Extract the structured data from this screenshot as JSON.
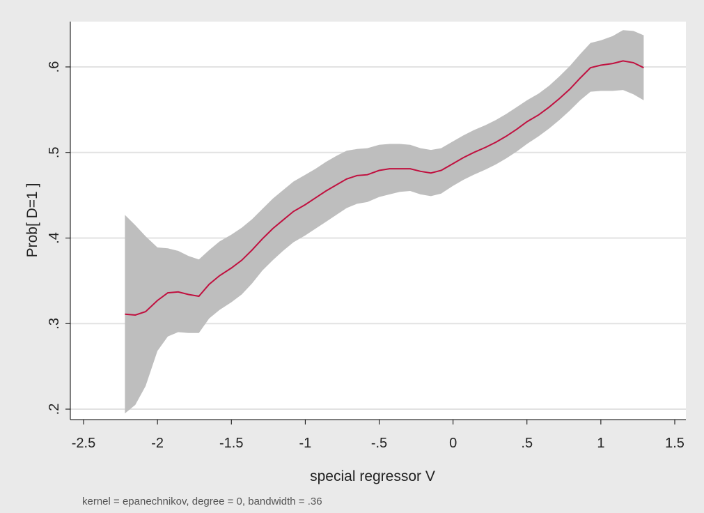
{
  "chart_data": {
    "type": "line",
    "xlabel": "special regressor V",
    "ylabel": "Prob[ D=1 ]",
    "note": "kernel = epanechnikov, degree = 0, bandwidth = .36",
    "xlim": [
      -2.5,
      1.5
    ],
    "ylim": [
      0.2,
      0.6
    ],
    "x_ticks": [
      -2.5,
      -2,
      -1.5,
      -1,
      -0.5,
      0,
      0.5,
      1,
      1.5
    ],
    "x_tick_labels": [
      "-2.5",
      "-2",
      "-1.5",
      "-1",
      "-.5",
      "0",
      ".5",
      "1",
      "1.5"
    ],
    "y_ticks": [
      0.2,
      0.3,
      0.4,
      0.5,
      0.6
    ],
    "y_tick_labels": [
      ".2",
      ".3",
      ".4",
      ".5",
      ".6"
    ],
    "grid": "horizontal",
    "colors": {
      "line": "#c0103f",
      "band": "#bebebe",
      "background": "#eaeaea",
      "plot_area": "#ffffff",
      "grid": "#e2e2e2"
    },
    "series": [
      {
        "x": [
          -2.22,
          -2.15,
          -2.08,
          -2.0,
          -1.93,
          -1.86,
          -1.79,
          -1.72,
          -1.65,
          -1.58,
          -1.5,
          -1.43,
          -1.36,
          -1.29,
          -1.22,
          -1.15,
          -1.08,
          -1.0,
          -0.93,
          -0.86,
          -0.79,
          -0.72,
          -0.65,
          -0.58,
          -0.5,
          -0.43,
          -0.36,
          -0.29,
          -0.22,
          -0.15,
          -0.08,
          0.0,
          0.07,
          0.14,
          0.22,
          0.29,
          0.36,
          0.43,
          0.5,
          0.58,
          0.65,
          0.72,
          0.79,
          0.86,
          0.93,
          1.0,
          1.08,
          1.15,
          1.22,
          1.29
        ],
        "values": [
          0.311,
          0.31,
          0.314,
          0.327,
          0.336,
          0.337,
          0.334,
          0.332,
          0.346,
          0.356,
          0.365,
          0.374,
          0.386,
          0.399,
          0.411,
          0.421,
          0.431,
          0.439,
          0.447,
          0.455,
          0.462,
          0.469,
          0.473,
          0.474,
          0.479,
          0.481,
          0.481,
          0.481,
          0.478,
          0.476,
          0.479,
          0.487,
          0.494,
          0.5,
          0.506,
          0.512,
          0.519,
          0.527,
          0.536,
          0.544,
          0.553,
          0.563,
          0.574,
          0.587,
          0.599,
          0.602,
          0.604,
          0.607,
          0.605,
          0.599
        ],
        "ci_upper": [
          0.427,
          0.415,
          0.402,
          0.389,
          0.388,
          0.385,
          0.379,
          0.375,
          0.386,
          0.396,
          0.404,
          0.412,
          0.422,
          0.434,
          0.446,
          0.456,
          0.466,
          0.474,
          0.481,
          0.489,
          0.496,
          0.502,
          0.504,
          0.505,
          0.509,
          0.51,
          0.51,
          0.509,
          0.505,
          0.503,
          0.505,
          0.513,
          0.52,
          0.526,
          0.532,
          0.538,
          0.545,
          0.553,
          0.561,
          0.569,
          0.578,
          0.589,
          0.601,
          0.615,
          0.628,
          0.631,
          0.636,
          0.643,
          0.642,
          0.637
        ],
        "ci_lower": [
          0.195,
          0.205,
          0.227,
          0.268,
          0.285,
          0.29,
          0.289,
          0.289,
          0.306,
          0.316,
          0.325,
          0.334,
          0.347,
          0.362,
          0.374,
          0.385,
          0.395,
          0.403,
          0.411,
          0.419,
          0.427,
          0.435,
          0.44,
          0.442,
          0.448,
          0.451,
          0.454,
          0.455,
          0.451,
          0.449,
          0.452,
          0.461,
          0.468,
          0.474,
          0.48,
          0.486,
          0.493,
          0.501,
          0.51,
          0.519,
          0.528,
          0.538,
          0.549,
          0.561,
          0.571,
          0.572,
          0.572,
          0.573,
          0.568,
          0.561
        ]
      }
    ]
  }
}
